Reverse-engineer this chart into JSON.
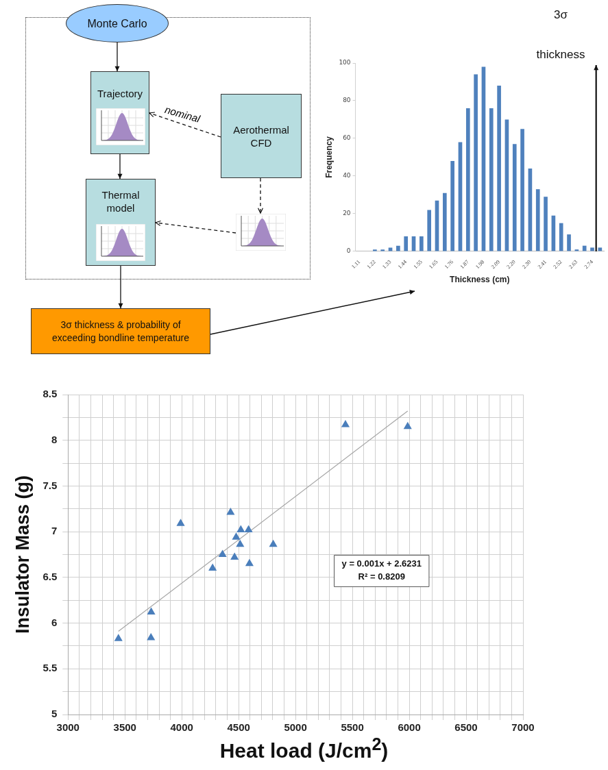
{
  "chart_data": [
    {
      "type": "other",
      "annotations": [
        "Monte Carlo",
        "Trajectory",
        "nominal",
        "Aerothermal CFD",
        "Thermal model",
        "3σ thickness & probability of exceeding bondline temperature"
      ]
    },
    {
      "type": "bar",
      "xlabel": "Thickness (cm)",
      "ylabel": "Frequency",
      "categories": [
        "1.11",
        null,
        "1.22",
        null,
        "1.33",
        null,
        "1.44",
        null,
        "1.55",
        null,
        "1.65",
        null,
        "1.76",
        null,
        "1.87",
        null,
        "1.98",
        null,
        "2.09",
        null,
        "2.20",
        null,
        "2.30",
        null,
        "2.41",
        null,
        "2.52",
        null,
        "2.63",
        null,
        "2.74",
        null
      ],
      "values": [
        0,
        0,
        1,
        1,
        2,
        3,
        8,
        8,
        8,
        22,
        27,
        31,
        48,
        58,
        76,
        94,
        98,
        76,
        88,
        70,
        57,
        65,
        44,
        33,
        29,
        19,
        15,
        9,
        1,
        3,
        2,
        2
      ],
      "color": "#4f81bd",
      "ylim": [
        0,
        100
      ],
      "yticks": [
        0,
        20,
        40,
        60,
        80,
        100
      ],
      "grid": false,
      "legend": false,
      "annotations": [
        "3σ thickness"
      ]
    },
    {
      "type": "scatter",
      "xlabel": "Heat load (J/cm$^{2}$)",
      "ylabel": "Insulator Mass (g)",
      "marker": "triangle",
      "grid": true,
      "legend": false,
      "xlim": [
        3000,
        7000
      ],
      "xticks": [
        3000,
        {
          "value": 3100,
          "label": null
        },
        {
          "value": 3200,
          "label": null
        },
        {
          "value": 3300,
          "label": null
        },
        {
          "value": 3400,
          "label": null
        },
        3500,
        {
          "value": 3600,
          "label": null
        },
        {
          "value": 3700,
          "label": null
        },
        {
          "value": 3800,
          "label": null
        },
        {
          "value": 3900,
          "label": null
        },
        4000,
        {
          "value": 4100,
          "label": null
        },
        {
          "value": 4200,
          "label": null
        },
        {
          "value": 4300,
          "label": null
        },
        {
          "value": 4400,
          "label": null
        },
        4500,
        {
          "value": 4600,
          "label": null
        },
        {
          "value": 4700,
          "label": null
        },
        {
          "value": 4800,
          "label": null
        },
        {
          "value": 4900,
          "label": null
        },
        5000,
        {
          "value": 5100,
          "label": null
        },
        {
          "value": 5200,
          "label": null
        },
        {
          "value": 5300,
          "label": null
        },
        {
          "value": 5400,
          "label": null
        },
        5500,
        {
          "value": 5600,
          "label": null
        },
        {
          "value": 5700,
          "label": null
        },
        {
          "value": 5800,
          "label": null
        },
        {
          "value": 5900,
          "label": null
        },
        6000,
        {
          "value": 6100,
          "label": null
        },
        {
          "value": 6200,
          "label": null
        },
        {
          "value": 6300,
          "label": null
        },
        {
          "value": 6400,
          "label": null
        },
        6500,
        {
          "value": 6600,
          "label": null
        },
        {
          "value": 6700,
          "label": null
        },
        {
          "value": 6800,
          "label": null
        },
        {
          "value": 6900,
          "label": null
        },
        7000
      ],
      "ylim": [
        5,
        8.5
      ],
      "yticks": [
        5,
        {
          "value": 5.25,
          "label": null
        },
        5.5,
        {
          "value": 5.75,
          "label": null
        },
        6,
        {
          "value": 6.25,
          "label": null
        },
        6.5,
        {
          "value": 6.75,
          "label": null
        },
        7,
        {
          "value": 7.25,
          "label": null
        },
        7.5,
        {
          "value": 7.75,
          "label": null
        },
        8,
        {
          "value": 8.25,
          "label": null
        },
        8.5
      ],
      "series": [
        {
          "type": "scatter",
          "color": "#4a7ebb",
          "x": [
            3443,
            3731,
            3729,
            3990,
            4429,
            4271,
            4358,
            4464,
            4478,
            4513,
            4519,
            4587,
            4595,
            4804,
            5439,
            5986
          ],
          "values": [
            5.83,
            6.12,
            5.84,
            7.09,
            7.21,
            6.6,
            6.75,
            6.72,
            6.94,
            6.86,
            7.02,
            7.02,
            6.65,
            6.86,
            8.17,
            8.15
          ]
        },
        {
          "type": "line",
          "color": "#a6a6a6",
          "marker": "none",
          "x": [
            3443,
            5986
          ],
          "values": [
            5.91,
            8.32
          ]
        }
      ],
      "annotations": [
        "y = 0.001x + 2.6231",
        "R² = 0.8209"
      ]
    }
  ]
}
